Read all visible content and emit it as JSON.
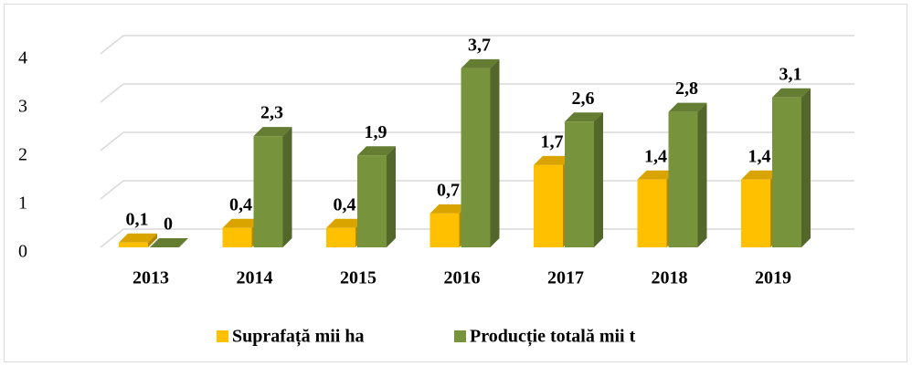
{
  "chart_data": {
    "type": "bar3d",
    "categories": [
      "2013",
      "2014",
      "2015",
      "2016",
      "2017",
      "2018",
      "2019"
    ],
    "series": [
      {
        "name": "Suprafață mii ha",
        "color": "#ffc000",
        "values": [
          0.1,
          0.4,
          0.4,
          0.7,
          1.7,
          1.4,
          1.4
        ],
        "value_labels": [
          "0,1",
          "0,4",
          "0,4",
          "0,7",
          "1,7",
          "1,4",
          "1,4"
        ]
      },
      {
        "name": "Producție totală mii t",
        "color": "#77933c",
        "values": [
          0,
          2.3,
          1.9,
          3.7,
          2.6,
          2.8,
          3.1
        ],
        "value_labels": [
          "0",
          "2,3",
          "1,9",
          "3,7",
          "2,6",
          "2,8",
          "3,1"
        ]
      }
    ],
    "ylim": [
      0,
      4
    ],
    "yticks": [
      0,
      1,
      2,
      3,
      4
    ],
    "grid": true,
    "legend": "bottom"
  }
}
